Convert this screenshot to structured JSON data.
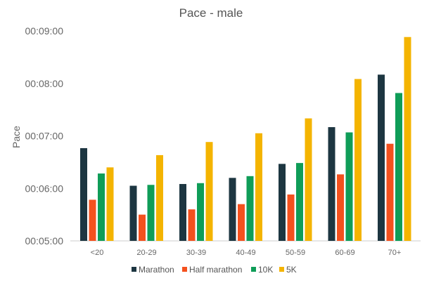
{
  "chart_data": {
    "type": "bar",
    "title": "Pace - male",
    "xlabel": "",
    "ylabel": "Pace",
    "ylim": [
      "00:05:00",
      "00:09:00"
    ],
    "yticks": [
      "00:05:00",
      "00:06:00",
      "00:07:00",
      "00:08:00",
      "00:09:00"
    ],
    "grid": false,
    "legend_position": "bottom",
    "categories": [
      "<20",
      "20-29",
      "30-39",
      "40-49",
      "50-59",
      "60-69",
      "70+"
    ],
    "series": [
      {
        "name": "Marathon",
        "color": "#1d3641",
        "values": [
          "00:06:46",
          "00:06:03",
          "00:06:05",
          "00:06:12",
          "00:06:28",
          "00:07:10",
          "00:08:10"
        ]
      },
      {
        "name": "Half marathon",
        "color": "#f4511e",
        "values": [
          "00:05:47",
          "00:05:30",
          "00:05:36",
          "00:05:42",
          "00:05:53",
          "00:06:16",
          "00:06:51"
        ]
      },
      {
        "name": "10K",
        "color": "#0f9d58",
        "values": [
          "00:06:17",
          "00:06:04",
          "00:06:06",
          "00:06:14",
          "00:06:29",
          "00:07:04",
          "00:07:49"
        ]
      },
      {
        "name": "5K",
        "color": "#f4b400",
        "values": [
          "00:06:24",
          "00:06:38",
          "00:06:53",
          "00:07:03",
          "00:07:20",
          "00:08:05",
          "00:08:53"
        ]
      }
    ]
  }
}
